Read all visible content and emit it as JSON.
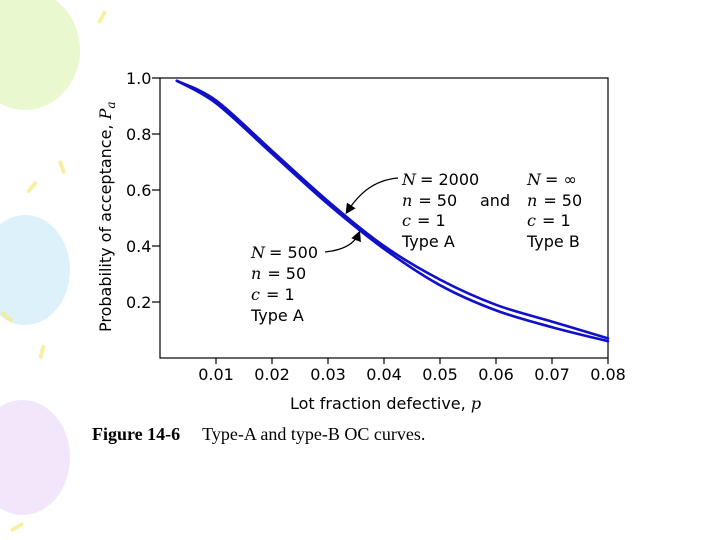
{
  "background": {
    "balloon_colors": [
      "#d8f2a8",
      "#bfe6f6",
      "#e6d2f6"
    ]
  },
  "caption": {
    "figure_label": "Figure 14-6",
    "text": "Type-A and type-B OC curves."
  },
  "chart_data": {
    "type": "line",
    "title": "",
    "xlabel": "Lot fraction defective, ",
    "xlabel_var": "p",
    "ylabel": "Probability of acceptance, ",
    "ylabel_var": "P",
    "ylabel_sub": "a",
    "xlim": [
      0,
      0.08
    ],
    "ylim": [
      0,
      1.0
    ],
    "x_ticks": [
      0.01,
      0.02,
      0.03,
      0.04,
      0.05,
      0.06,
      0.07,
      0.08
    ],
    "x_tick_labels": [
      "0.01",
      "0.02",
      "0.03",
      "0.04",
      "0.05",
      "0.06",
      "0.07",
      "0.08"
    ],
    "y_ticks": [
      0.2,
      0.4,
      0.6,
      0.8,
      1.0
    ],
    "y_tick_labels": [
      "0.2",
      "0.4",
      "0.6",
      "0.8",
      "1.0"
    ],
    "grid": false,
    "line_color": "#1010c8",
    "series": [
      {
        "name": "Type A (N = 2000, n = 50, c = 1)",
        "x": [
          0.003,
          0.01,
          0.02,
          0.03,
          0.04,
          0.05,
          0.06,
          0.07,
          0.08
        ],
        "y": [
          0.99,
          0.92,
          0.74,
          0.56,
          0.4,
          0.28,
          0.19,
          0.13,
          0.07
        ]
      },
      {
        "name": "Type B (N = ∞, n = 50, c = 1)",
        "x": [
          0.003,
          0.01,
          0.02,
          0.03,
          0.04,
          0.05,
          0.06,
          0.07,
          0.08
        ],
        "y": [
          0.99,
          0.91,
          0.73,
          0.55,
          0.39,
          0.26,
          0.17,
          0.11,
          0.06
        ]
      }
    ],
    "annotations": {
      "type_a_1000": {
        "N_label": "N",
        "N_value": "= 2000",
        "n_label": "n",
        "n_value": "= 50",
        "c_label": "c",
        "c_value": "= 1",
        "type": "Type A"
      },
      "and_text": "and",
      "type_b": {
        "N_label": "N",
        "N_value": "= ∞",
        "n_label": "n",
        "n_value": "= 50",
        "c_label": "c",
        "c_value": "= 1",
        "type": "Type B"
      },
      "type_a_500": {
        "N_label": "N",
        "N_value": "= 500",
        "n_label": "n",
        "n_value": "= 50",
        "c_label": "c",
        "c_value": "= 1",
        "type": "Type A"
      }
    }
  }
}
